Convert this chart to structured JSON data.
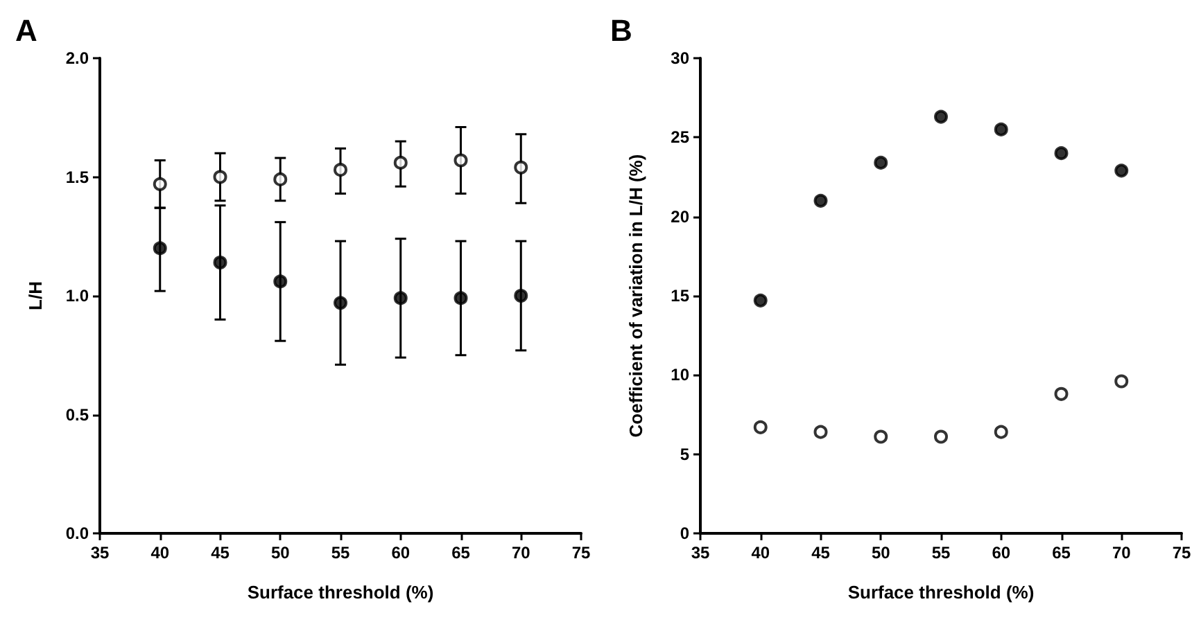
{
  "chart_data": [
    {
      "type": "scatter",
      "title": "A",
      "xlabel": "Surface threshold (%)",
      "ylabel": "L/H",
      "x": [
        40,
        45,
        50,
        55,
        60,
        65,
        70
      ],
      "xlim": [
        35,
        75
      ],
      "xticks": [
        35,
        40,
        45,
        50,
        55,
        60,
        65,
        70,
        75
      ],
      "ylim": [
        0,
        2.0
      ],
      "yticks": [
        {
          "value": 0,
          "label": "0.0"
        },
        {
          "value": 0.5,
          "label": "0.5"
        },
        {
          "value": 1,
          "label": "1.0"
        },
        {
          "value": 1.5,
          "label": "1.5"
        },
        {
          "value": 2,
          "label": "2.0"
        }
      ],
      "grid": false,
      "marker": "circle",
      "series": [
        {
          "color": "#ffffff",
          "values": [
            1.47,
            1.5,
            1.49,
            1.53,
            1.56,
            1.57,
            1.54
          ],
          "errors": [
            [
              1.37,
              1.57
            ],
            [
              1.4,
              1.6
            ],
            [
              1.4,
              1.58
            ],
            [
              1.43,
              1.62
            ],
            [
              1.46,
              1.65
            ],
            [
              1.43,
              1.71
            ],
            [
              1.39,
              1.68
            ]
          ]
        },
        {
          "color": "#000000",
          "values": [
            1.2,
            1.14,
            1.06,
            0.97,
            0.99,
            0.99,
            1.0
          ],
          "errors": [
            [
              1.02,
              1.37
            ],
            [
              0.9,
              1.38
            ],
            [
              0.81,
              1.31
            ],
            [
              0.71,
              1.23
            ],
            [
              0.74,
              1.24
            ],
            [
              0.75,
              1.23
            ],
            [
              0.77,
              1.23
            ]
          ]
        }
      ]
    },
    {
      "type": "scatter",
      "title": "B",
      "xlabel": "Surface threshold (%)",
      "ylabel": "Coefficient of variation in L/H (%)",
      "x": [
        40,
        45,
        50,
        55,
        60,
        65,
        70
      ],
      "xlim": [
        35,
        75
      ],
      "xticks": [
        35,
        40,
        45,
        50,
        55,
        60,
        65,
        70,
        75
      ],
      "ylim": [
        0,
        30
      ],
      "yticks": [
        0,
        5,
        10,
        15,
        20,
        25,
        30
      ],
      "grid": false,
      "marker": "circle",
      "series": [
        {
          "color": "#000000",
          "values": [
            14.7,
            21.0,
            23.4,
            26.3,
            25.5,
            24.0,
            22.9
          ]
        },
        {
          "color": "#ffffff",
          "values": [
            6.7,
            6.4,
            6.1,
            6.1,
            6.4,
            8.8,
            9.6
          ]
        }
      ]
    }
  ]
}
